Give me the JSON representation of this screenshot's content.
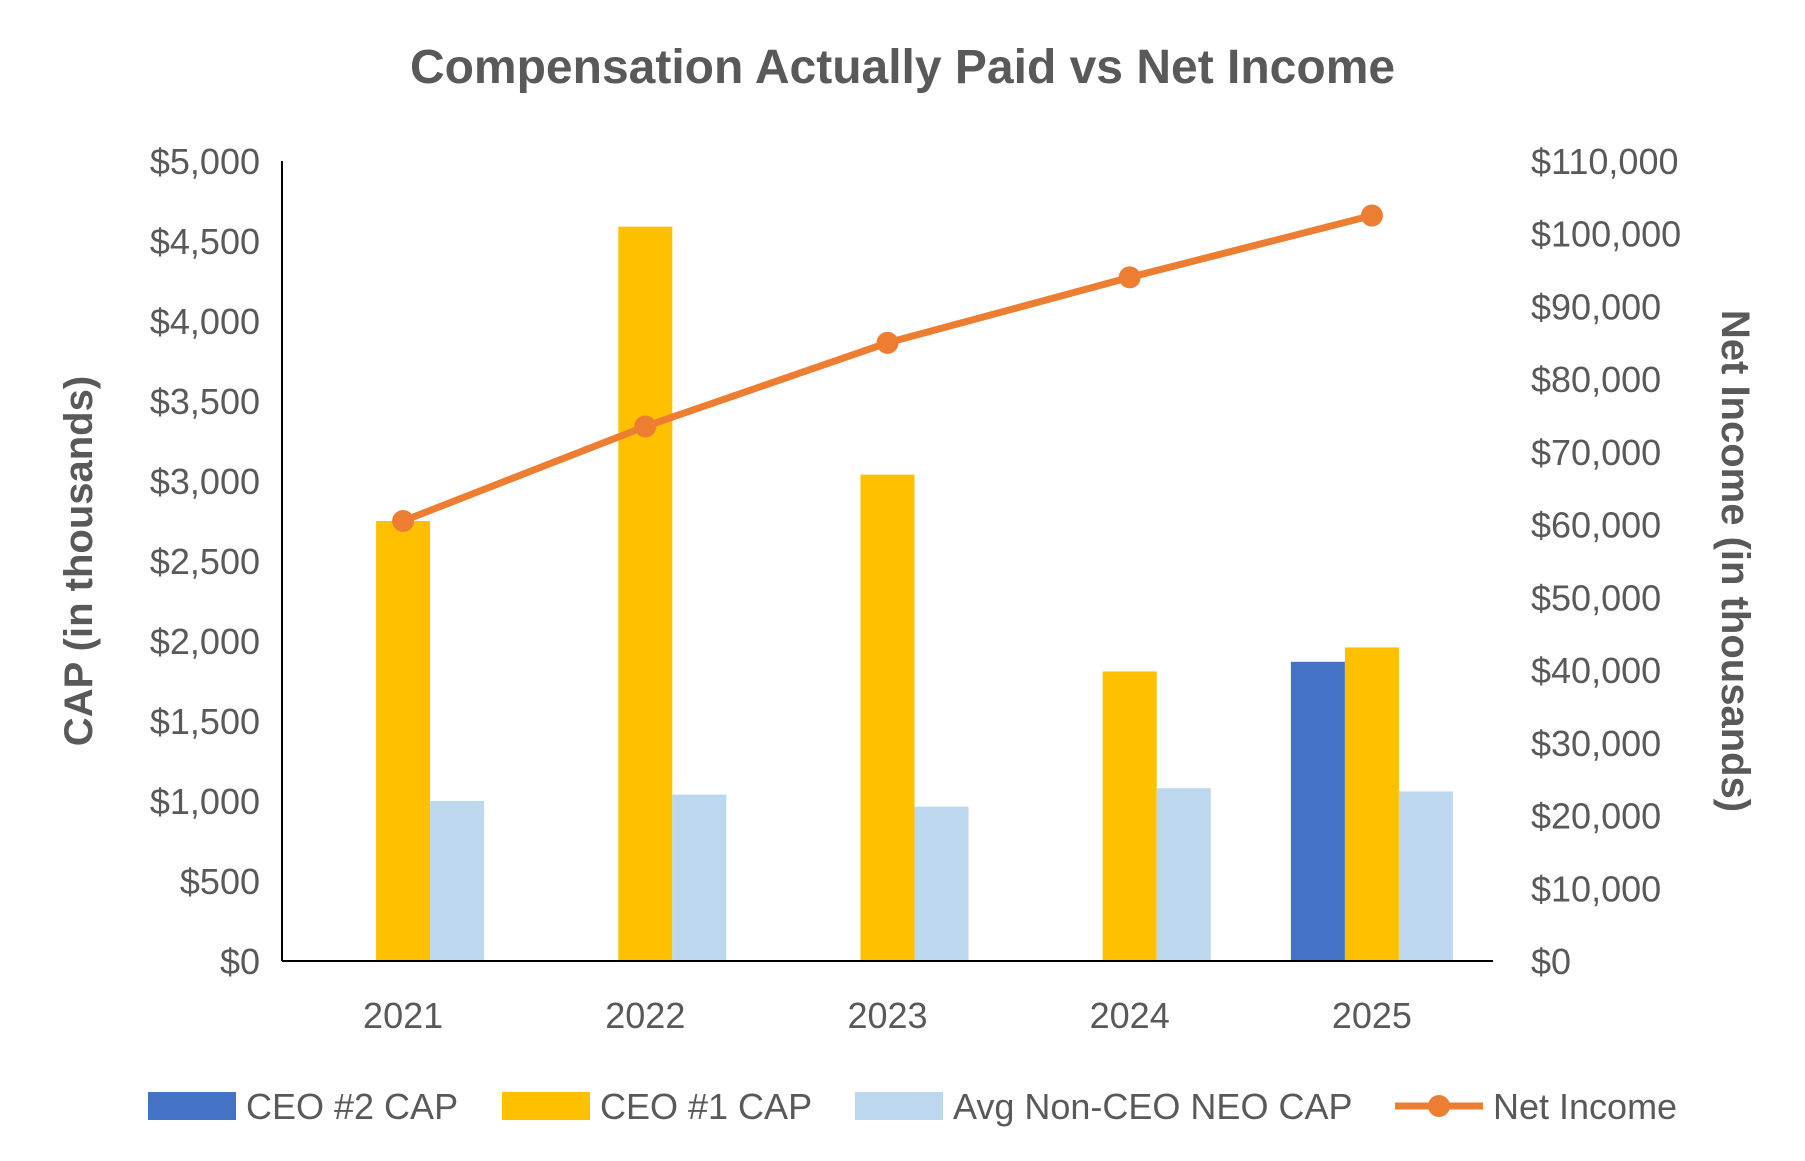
{
  "chart_data": {
    "type": "bar",
    "title": "Compensation Actually Paid vs Net Income",
    "categories": [
      "2021",
      "2022",
      "2023",
      "2024",
      "2025"
    ],
    "ylabel": "CAP (in thousands)",
    "y2label": "Net Income (in thousands)",
    "ylim": [
      0,
      5000
    ],
    "y2lim": [
      0,
      110000
    ],
    "yticks": [
      "$0",
      "$500",
      "$1,000",
      "$1,500",
      "$2,000",
      "$2,500",
      "$3,000",
      "$3,500",
      "$4,000",
      "$4,500",
      "$5,000"
    ],
    "y2ticks": [
      "$0",
      "$10,000",
      "$20,000",
      "$30,000",
      "$40,000",
      "$50,000",
      "$60,000",
      "$70,000",
      "$80,000",
      "$90,000",
      "$100,000",
      "$110,000"
    ],
    "series": [
      {
        "name": "CEO #2 CAP",
        "kind": "bar",
        "axis": "left",
        "color": "#4472C4",
        "values": [
          null,
          null,
          null,
          null,
          1870
        ]
      },
      {
        "name": "CEO #1 CAP",
        "kind": "bar",
        "axis": "left",
        "color": "#FFC000",
        "values": [
          2750,
          4590,
          3040,
          1810,
          1960
        ]
      },
      {
        "name": "Avg Non-CEO NEO CAP",
        "kind": "bar",
        "axis": "left",
        "color": "#BDD7EE",
        "values": [
          1000,
          1040,
          965,
          1080,
          1060
        ]
      },
      {
        "name": "Net Income",
        "kind": "line",
        "axis": "right",
        "color": "#ED7D31",
        "values": [
          60500,
          73500,
          85000,
          94000,
          102500
        ]
      }
    ],
    "grid": false,
    "legend": "bottom"
  }
}
